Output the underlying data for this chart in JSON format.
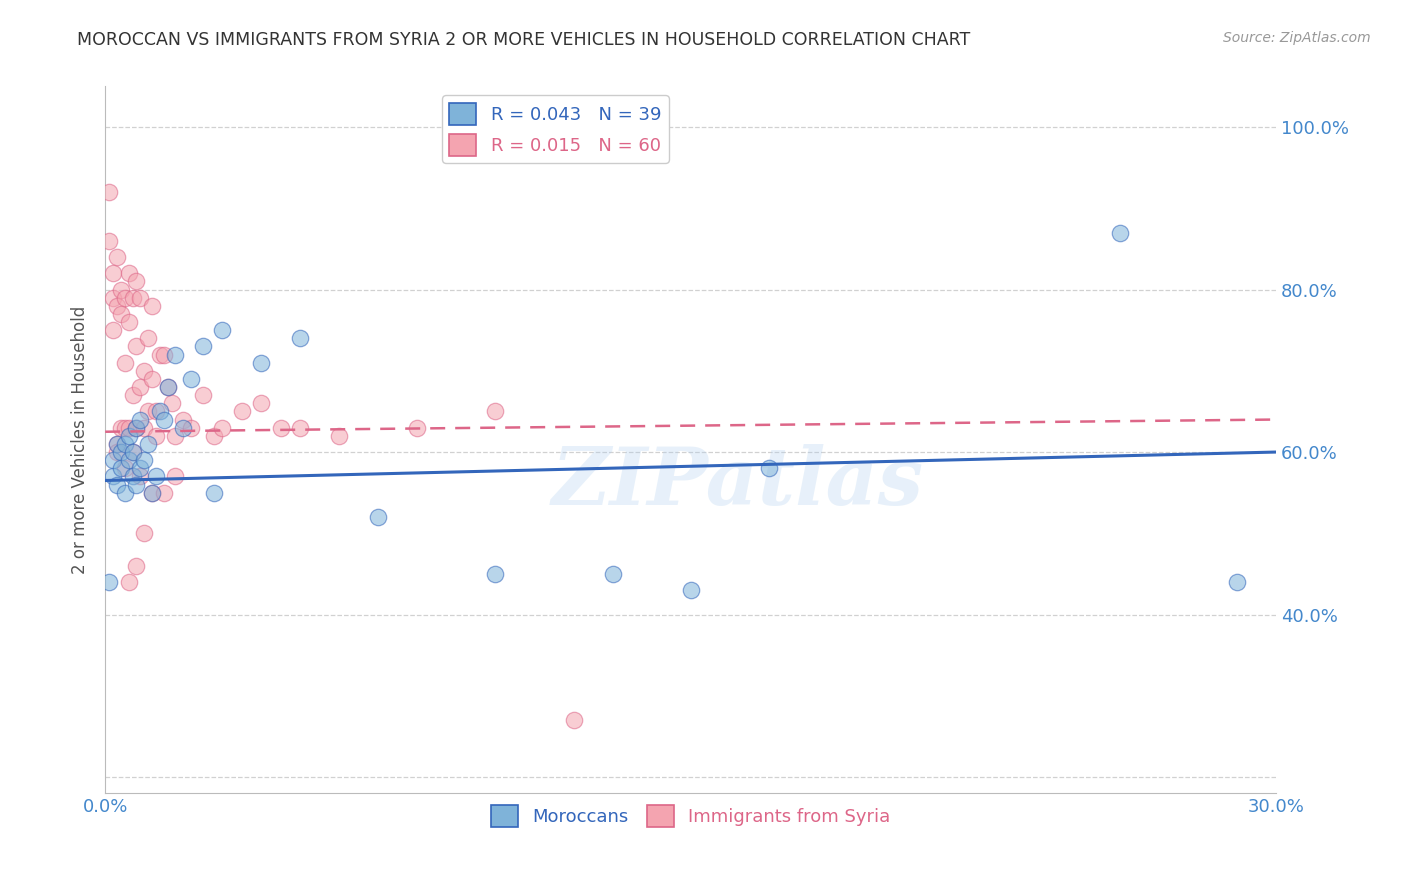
{
  "title": "MOROCCAN VS IMMIGRANTS FROM SYRIA 2 OR MORE VEHICLES IN HOUSEHOLD CORRELATION CHART",
  "source": "Source: ZipAtlas.com",
  "ylabel": "2 or more Vehicles in Household",
  "xlim": [
    0.0,
    0.3
  ],
  "ylim": [
    0.18,
    1.05
  ],
  "xticks": [
    0.0,
    0.05,
    0.1,
    0.15,
    0.2,
    0.25,
    0.3
  ],
  "xticklabels": [
    "0.0%",
    "",
    "",
    "",
    "",
    "",
    "30.0%"
  ],
  "yticks": [
    0.2,
    0.4,
    0.6,
    0.8,
    1.0
  ],
  "yticklabels": [
    "",
    "40.0%",
    "60.0%",
    "80.0%",
    "100.0%"
  ],
  "blue_R": 0.043,
  "blue_N": 39,
  "pink_R": 0.015,
  "pink_N": 60,
  "blue_label": "Moroccans",
  "pink_label": "Immigrants from Syria",
  "blue_color": "#7FB3D9",
  "pink_color": "#F4A4B0",
  "blue_line_color": "#3366BB",
  "pink_line_color": "#DD6688",
  "axis_color": "#4488CC",
  "watermark": "ZIPatlas",
  "background_color": "#FFFFFF",
  "blue_x": [
    0.001,
    0.002,
    0.002,
    0.003,
    0.003,
    0.004,
    0.004,
    0.005,
    0.005,
    0.006,
    0.006,
    0.007,
    0.007,
    0.008,
    0.008,
    0.009,
    0.009,
    0.01,
    0.011,
    0.012,
    0.013,
    0.014,
    0.015,
    0.016,
    0.018,
    0.02,
    0.022,
    0.025,
    0.028,
    0.03,
    0.04,
    0.05,
    0.07,
    0.1,
    0.13,
    0.15,
    0.17,
    0.26,
    0.29
  ],
  "blue_y": [
    0.44,
    0.57,
    0.59,
    0.56,
    0.61,
    0.6,
    0.58,
    0.55,
    0.61,
    0.59,
    0.62,
    0.57,
    0.6,
    0.63,
    0.56,
    0.58,
    0.64,
    0.59,
    0.61,
    0.55,
    0.57,
    0.65,
    0.64,
    0.68,
    0.72,
    0.63,
    0.69,
    0.73,
    0.55,
    0.75,
    0.71,
    0.74,
    0.52,
    0.45,
    0.45,
    0.43,
    0.58,
    0.87,
    0.44
  ],
  "pink_x": [
    0.001,
    0.001,
    0.002,
    0.002,
    0.002,
    0.003,
    0.003,
    0.003,
    0.004,
    0.004,
    0.004,
    0.005,
    0.005,
    0.005,
    0.006,
    0.006,
    0.006,
    0.007,
    0.007,
    0.008,
    0.008,
    0.008,
    0.009,
    0.009,
    0.01,
    0.01,
    0.011,
    0.011,
    0.012,
    0.012,
    0.013,
    0.013,
    0.014,
    0.015,
    0.016,
    0.017,
    0.018,
    0.02,
    0.022,
    0.025,
    0.028,
    0.03,
    0.035,
    0.04,
    0.045,
    0.05,
    0.06,
    0.08,
    0.1,
    0.12,
    0.003,
    0.005,
    0.007,
    0.009,
    0.012,
    0.015,
    0.018,
    0.01,
    0.008,
    0.006
  ],
  "pink_y": [
    0.92,
    0.86,
    0.79,
    0.75,
    0.82,
    0.84,
    0.78,
    0.61,
    0.8,
    0.77,
    0.63,
    0.79,
    0.71,
    0.63,
    0.82,
    0.76,
    0.63,
    0.79,
    0.67,
    0.81,
    0.73,
    0.63,
    0.79,
    0.68,
    0.63,
    0.7,
    0.74,
    0.65,
    0.78,
    0.69,
    0.65,
    0.62,
    0.72,
    0.72,
    0.68,
    0.66,
    0.62,
    0.64,
    0.63,
    0.67,
    0.62,
    0.63,
    0.65,
    0.66,
    0.63,
    0.63,
    0.62,
    0.63,
    0.65,
    0.27,
    0.6,
    0.58,
    0.6,
    0.57,
    0.55,
    0.55,
    0.57,
    0.5,
    0.46,
    0.44
  ],
  "blue_trend_x": [
    0.0,
    0.3
  ],
  "blue_trend_y": [
    0.565,
    0.6
  ],
  "pink_trend_x": [
    0.0,
    0.3
  ],
  "pink_trend_y": [
    0.625,
    0.64
  ]
}
